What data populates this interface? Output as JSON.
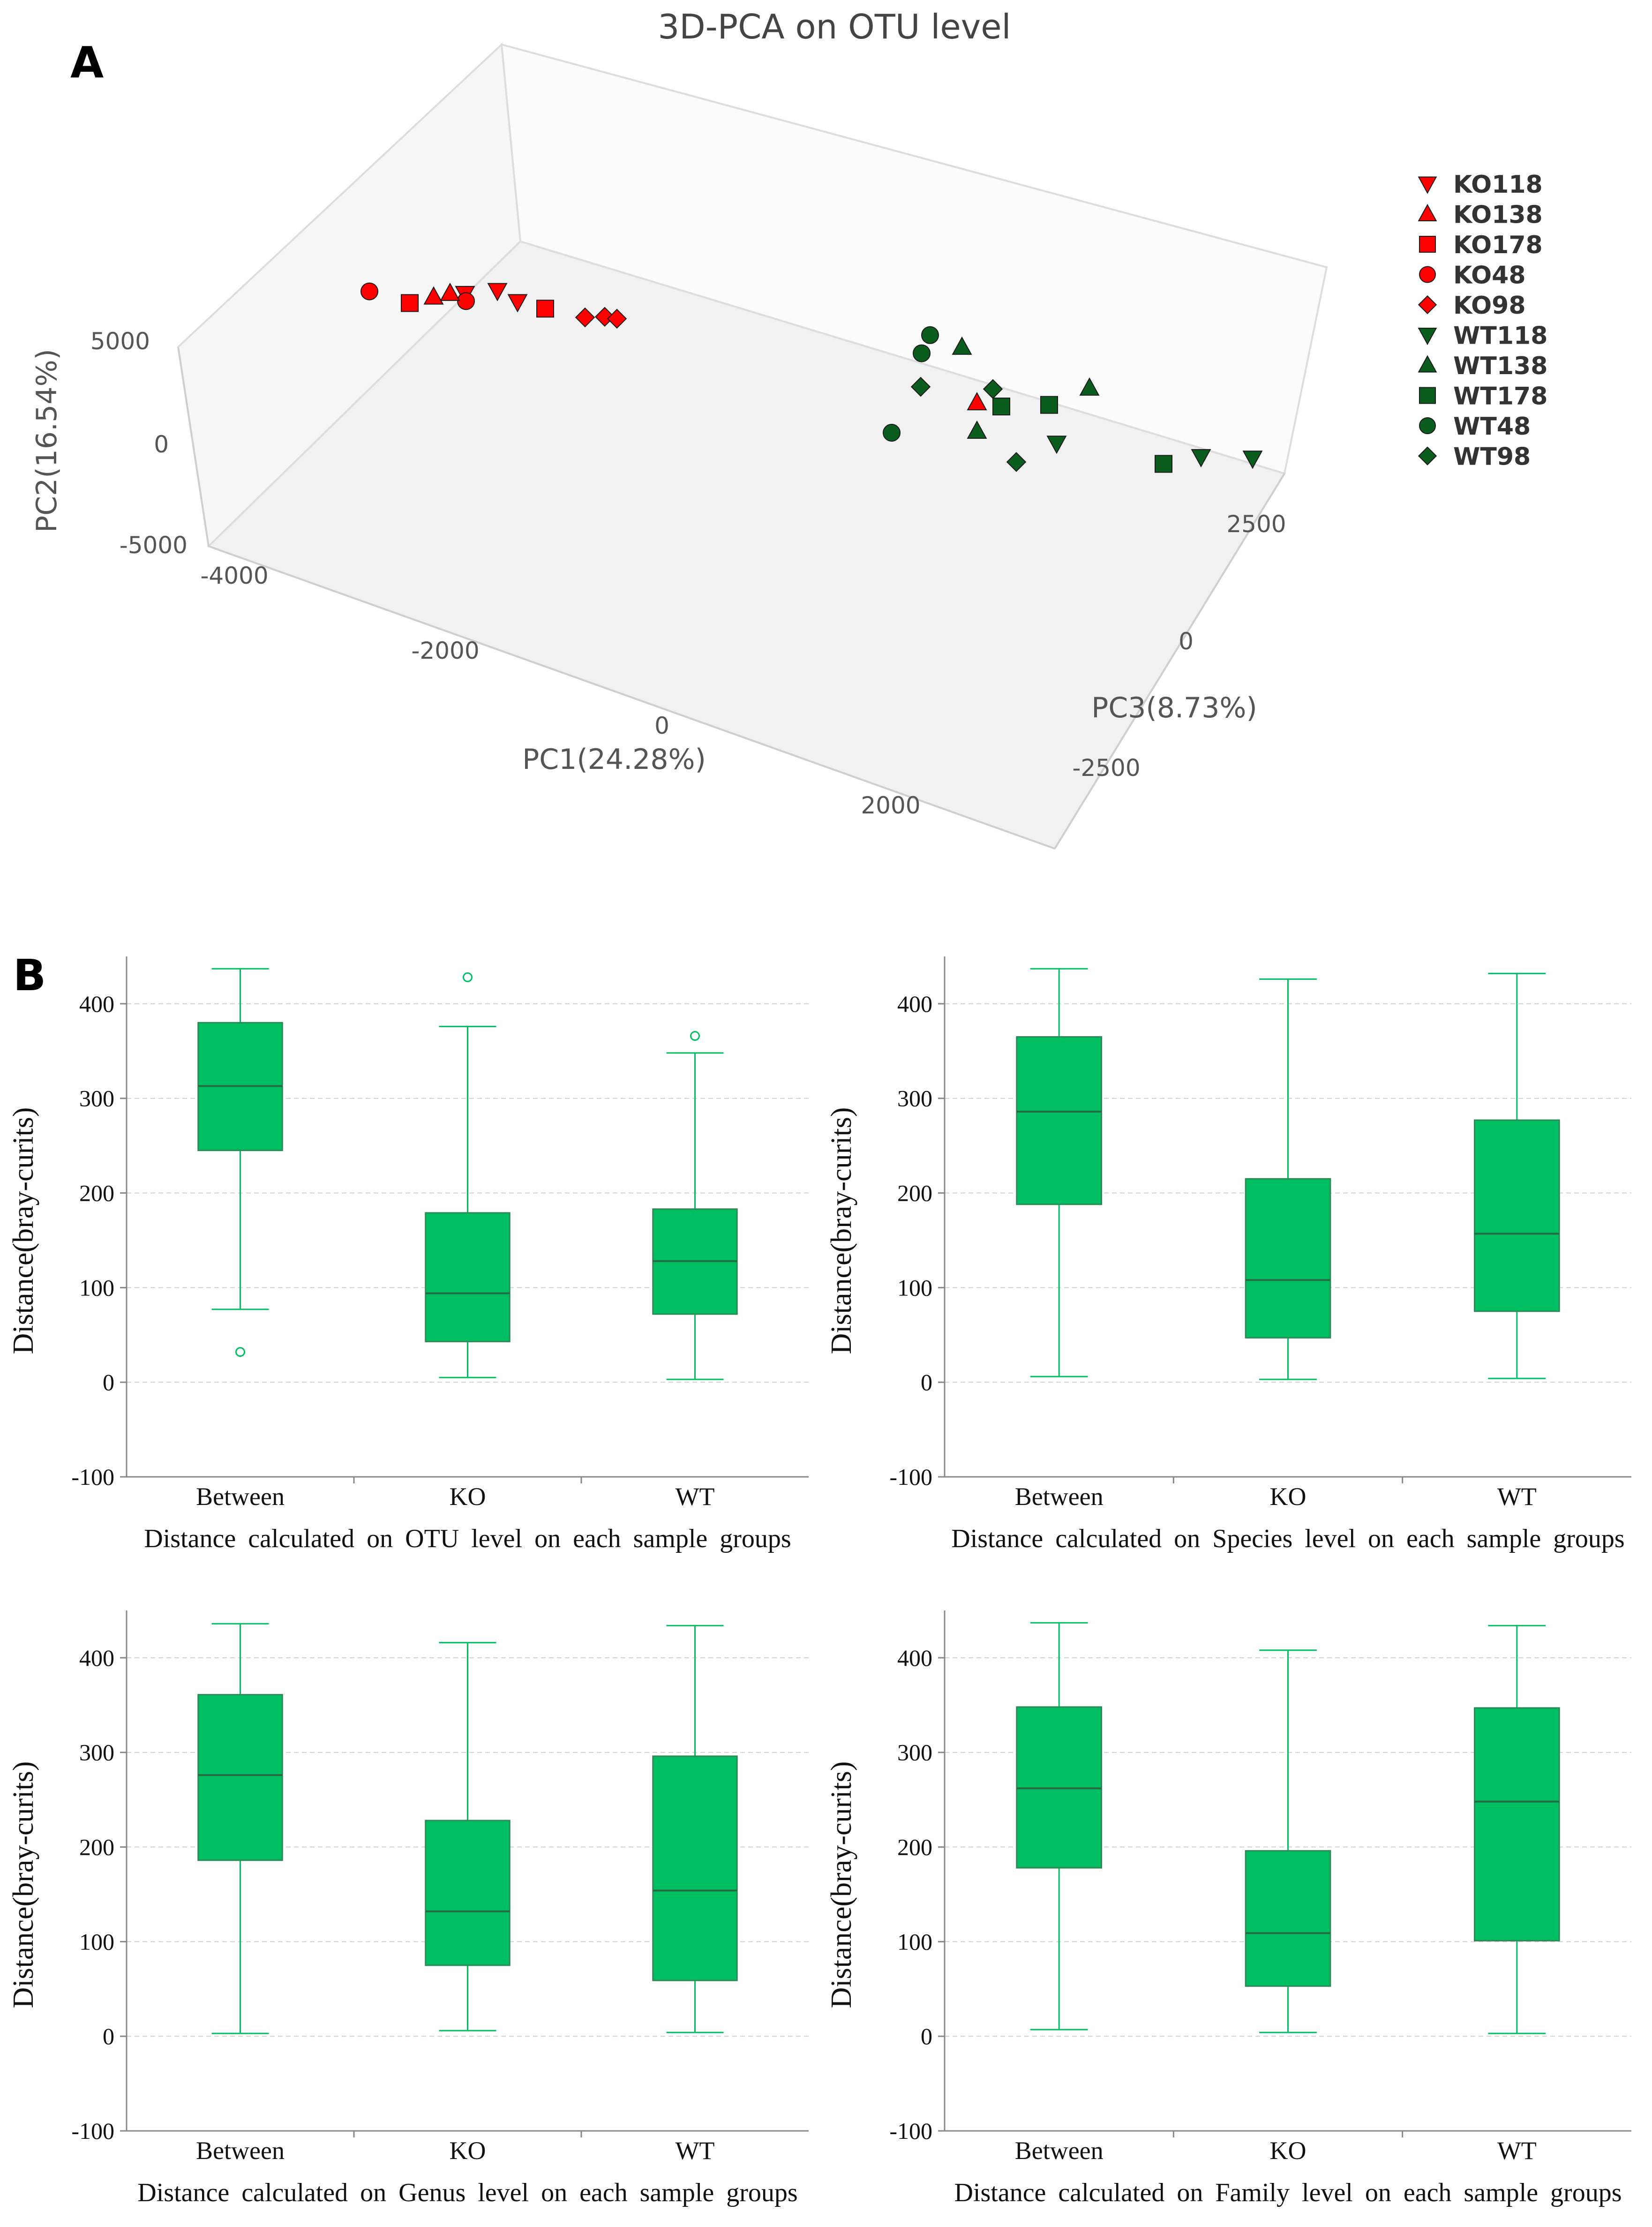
{
  "panels": {
    "a_letter": "A",
    "b_letter": "B"
  },
  "chart_data": [
    {
      "type": "scatter",
      "dims": 3,
      "title": "3D-PCA on OTU level",
      "xlabel": "PC1(24.28%)",
      "ylabel": "PC2(16.54%)",
      "zlabel": "PC3(8.73%)",
      "x_ticks": [
        "-4000",
        "-2000",
        "0",
        "2000"
      ],
      "y_ticks": [
        "5000",
        "0",
        "-5000"
      ],
      "z_ticks": [
        "2500",
        "0",
        "-2500"
      ],
      "legend_position": "right",
      "legend": [
        {
          "name": "KO118",
          "color": "#ff0000",
          "marker": "triangle-down"
        },
        {
          "name": "KO138",
          "color": "#ff0000",
          "marker": "triangle-up"
        },
        {
          "name": "KO178",
          "color": "#ff0000",
          "marker": "square"
        },
        {
          "name": "KO48",
          "color": "#ff0000",
          "marker": "circle"
        },
        {
          "name": "KO98",
          "color": "#ff0000",
          "marker": "diamond"
        },
        {
          "name": "WT118",
          "color": "#0b5d1e",
          "marker": "triangle-down"
        },
        {
          "name": "WT138",
          "color": "#0b5d1e",
          "marker": "triangle-up"
        },
        {
          "name": "WT178",
          "color": "#0b5d1e",
          "marker": "square"
        },
        {
          "name": "WT48",
          "color": "#0b5d1e",
          "marker": "circle"
        },
        {
          "name": "WT98",
          "color": "#0b5d1e",
          "marker": "diamond"
        }
      ],
      "points": [
        {
          "group": "KO48",
          "x": -2400,
          "y": 3800,
          "z": 1200
        },
        {
          "group": "KO178",
          "x": -2100,
          "y": 3700,
          "z": 1100
        },
        {
          "group": "KO138",
          "x": -1950,
          "y": 3900,
          "z": 1100
        },
        {
          "group": "KO118",
          "x": -1800,
          "y": 3850,
          "z": 1200
        },
        {
          "group": "KO48",
          "x": -1700,
          "y": 4000,
          "z": 1000
        },
        {
          "group": "KO138",
          "x": -1800,
          "y": 4200,
          "z": 1000
        },
        {
          "group": "KO118",
          "x": -1550,
          "y": 4150,
          "z": 1100
        },
        {
          "group": "KO118",
          "x": -1400,
          "y": 3950,
          "z": 1050
        },
        {
          "group": "KO178",
          "x": -1250,
          "y": 3700,
          "z": 1100
        },
        {
          "group": "KO98",
          "x": -1000,
          "y": 3500,
          "z": 1100
        },
        {
          "group": "KO98",
          "x": -900,
          "y": 3450,
          "z": 1150
        },
        {
          "group": "KO98",
          "x": -800,
          "y": 3500,
          "z": 1100
        },
        {
          "group": "WT48",
          "x": 1400,
          "y": 4300,
          "z": 600
        },
        {
          "group": "WT138",
          "x": 1600,
          "y": 4000,
          "z": 600
        },
        {
          "group": "WT48",
          "x": 1300,
          "y": 3600,
          "z": 700
        },
        {
          "group": "WT138",
          "x": 2400,
          "y": 3000,
          "z": 600
        },
        {
          "group": "WT98",
          "x": 1200,
          "y": 2300,
          "z": 900
        },
        {
          "group": "WT98",
          "x": 1700,
          "y": 2500,
          "z": 800
        },
        {
          "group": "WT178",
          "x": 1800,
          "y": 2200,
          "z": 700
        },
        {
          "group": "WT178",
          "x": 2100,
          "y": 2300,
          "z": 700
        },
        {
          "group": "KO138",
          "x": 1600,
          "y": 2100,
          "z": 800
        },
        {
          "group": "WT138",
          "x": 1600,
          "y": 1300,
          "z": 800
        },
        {
          "group": "WT118",
          "x": 2100,
          "y": 1050,
          "z": 800
        },
        {
          "group": "WT118",
          "x": 3100,
          "y": 1200,
          "z": 600
        },
        {
          "group": "WT98",
          "x": 1800,
          "y": 300,
          "z": 900
        },
        {
          "group": "WT48",
          "x": 500,
          "y": -1000,
          "z": 2000
        },
        {
          "group": "WT178",
          "x": 2300,
          "y": -1200,
          "z": 1800
        },
        {
          "group": "WT118",
          "x": 3000,
          "y": -400,
          "z": 1500
        }
      ]
    },
    {
      "type": "box",
      "title": "",
      "xlabel": "Distance calculated on OTU level on each sample groups",
      "ylabel": "Distance(bray-curits)",
      "ylim": [
        -100,
        450
      ],
      "y_ticks": [
        "-100",
        "0",
        "100",
        "200",
        "300",
        "400"
      ],
      "grid": "horizontal dashed",
      "color": "#00bf63",
      "categories": [
        "Between",
        "KO",
        "WT"
      ],
      "boxes": [
        {
          "min": 77,
          "q1": 245,
          "median": 313,
          "q3": 380,
          "max": 437,
          "outliers": [
            32
          ]
        },
        {
          "min": 5,
          "q1": 43,
          "median": 94,
          "q3": 179,
          "max": 376,
          "outliers": [
            428
          ]
        },
        {
          "min": 3,
          "q1": 72,
          "median": 128,
          "q3": 183,
          "max": 348,
          "outliers": [
            366
          ]
        }
      ]
    },
    {
      "type": "box",
      "title": "",
      "xlabel": "Distance calculated on Species level on each sample groups",
      "ylabel": "Distance(bray-curits)",
      "ylim": [
        -100,
        450
      ],
      "y_ticks": [
        "-100",
        "0",
        "100",
        "200",
        "300",
        "400"
      ],
      "grid": "horizontal dashed",
      "color": "#00bf63",
      "categories": [
        "Between",
        "KO",
        "WT"
      ],
      "boxes": [
        {
          "min": 6,
          "q1": 188,
          "median": 286,
          "q3": 365,
          "max": 437,
          "outliers": []
        },
        {
          "min": 3,
          "q1": 47,
          "median": 108,
          "q3": 215,
          "max": 426,
          "outliers": []
        },
        {
          "min": 4,
          "q1": 75,
          "median": 157,
          "q3": 277,
          "max": 432,
          "outliers": []
        }
      ]
    },
    {
      "type": "box",
      "title": "",
      "xlabel": "Distance calculated on Genus level on each sample groups",
      "ylabel": "Distance(bray-curits)",
      "ylim": [
        -100,
        450
      ],
      "y_ticks": [
        "-100",
        "0",
        "100",
        "200",
        "300",
        "400"
      ],
      "grid": "horizontal dashed",
      "color": "#00bf63",
      "categories": [
        "Between",
        "KO",
        "WT"
      ],
      "boxes": [
        {
          "min": 3,
          "q1": 186,
          "median": 276,
          "q3": 361,
          "max": 436,
          "outliers": []
        },
        {
          "min": 6,
          "q1": 75,
          "median": 132,
          "q3": 228,
          "max": 416,
          "outliers": []
        },
        {
          "min": 4,
          "q1": 59,
          "median": 154,
          "q3": 296,
          "max": 434,
          "outliers": []
        }
      ]
    },
    {
      "type": "box",
      "title": "",
      "xlabel": "Distance calculated on Family level on each sample groups",
      "ylabel": "Distance(bray-curits)",
      "ylim": [
        -100,
        450
      ],
      "y_ticks": [
        "-100",
        "0",
        "100",
        "200",
        "300",
        "400"
      ],
      "grid": "horizontal dashed",
      "color": "#00bf63",
      "categories": [
        "Between",
        "KO",
        "WT"
      ],
      "boxes": [
        {
          "min": 7,
          "q1": 178,
          "median": 262,
          "q3": 348,
          "max": 437,
          "outliers": []
        },
        {
          "min": 4,
          "q1": 53,
          "median": 109,
          "q3": 196,
          "max": 408,
          "outliers": []
        },
        {
          "min": 3,
          "q1": 101,
          "median": 248,
          "q3": 347,
          "max": 434,
          "outliers": []
        }
      ]
    }
  ]
}
